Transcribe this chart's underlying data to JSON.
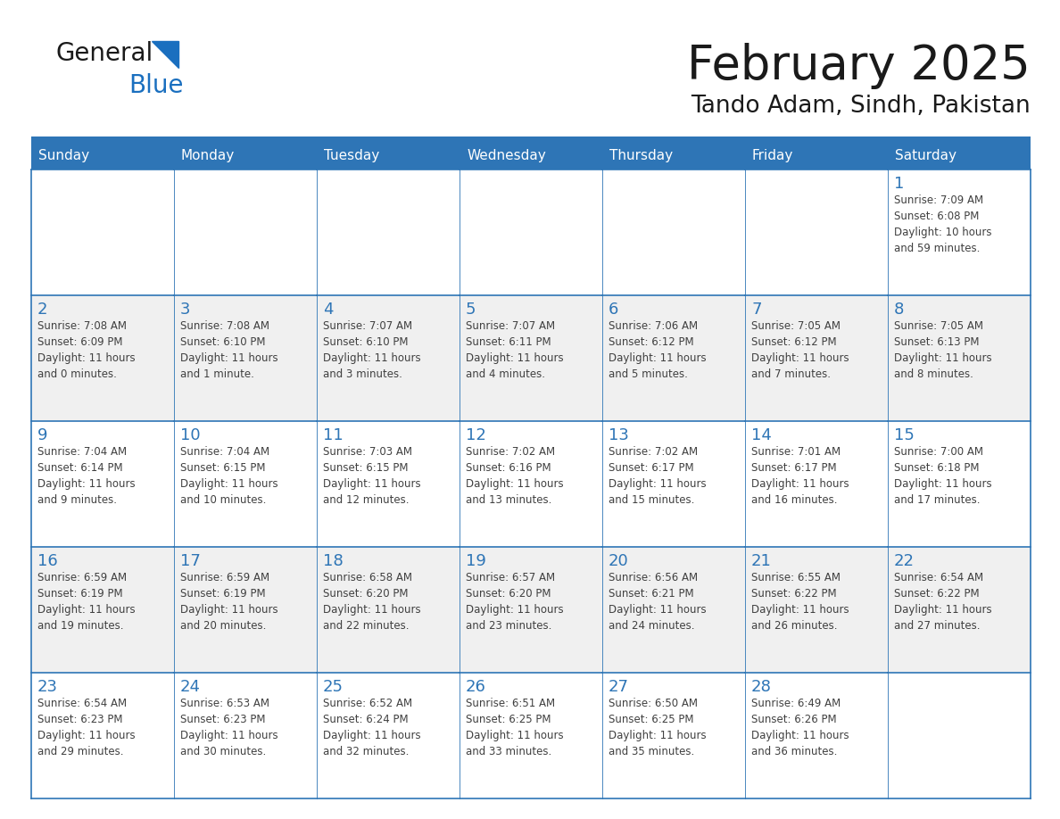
{
  "title": "February 2025",
  "subtitle": "Tando Adam, Sindh, Pakistan",
  "header_bg": "#2E75B6",
  "header_text_color": "#FFFFFF",
  "cell_bg_white": "#FFFFFF",
  "cell_bg_gray": "#F0F0F0",
  "day_number_color": "#2E75B6",
  "text_color": "#404040",
  "border_color": "#2E75B6",
  "days_of_week": [
    "Sunday",
    "Monday",
    "Tuesday",
    "Wednesday",
    "Thursday",
    "Friday",
    "Saturday"
  ],
  "weeks": [
    [
      {
        "day": null,
        "info": null
      },
      {
        "day": null,
        "info": null
      },
      {
        "day": null,
        "info": null
      },
      {
        "day": null,
        "info": null
      },
      {
        "day": null,
        "info": null
      },
      {
        "day": null,
        "info": null
      },
      {
        "day": 1,
        "info": "Sunrise: 7:09 AM\nSunset: 6:08 PM\nDaylight: 10 hours\nand 59 minutes."
      }
    ],
    [
      {
        "day": 2,
        "info": "Sunrise: 7:08 AM\nSunset: 6:09 PM\nDaylight: 11 hours\nand 0 minutes."
      },
      {
        "day": 3,
        "info": "Sunrise: 7:08 AM\nSunset: 6:10 PM\nDaylight: 11 hours\nand 1 minute."
      },
      {
        "day": 4,
        "info": "Sunrise: 7:07 AM\nSunset: 6:10 PM\nDaylight: 11 hours\nand 3 minutes."
      },
      {
        "day": 5,
        "info": "Sunrise: 7:07 AM\nSunset: 6:11 PM\nDaylight: 11 hours\nand 4 minutes."
      },
      {
        "day": 6,
        "info": "Sunrise: 7:06 AM\nSunset: 6:12 PM\nDaylight: 11 hours\nand 5 minutes."
      },
      {
        "day": 7,
        "info": "Sunrise: 7:05 AM\nSunset: 6:12 PM\nDaylight: 11 hours\nand 7 minutes."
      },
      {
        "day": 8,
        "info": "Sunrise: 7:05 AM\nSunset: 6:13 PM\nDaylight: 11 hours\nand 8 minutes."
      }
    ],
    [
      {
        "day": 9,
        "info": "Sunrise: 7:04 AM\nSunset: 6:14 PM\nDaylight: 11 hours\nand 9 minutes."
      },
      {
        "day": 10,
        "info": "Sunrise: 7:04 AM\nSunset: 6:15 PM\nDaylight: 11 hours\nand 10 minutes."
      },
      {
        "day": 11,
        "info": "Sunrise: 7:03 AM\nSunset: 6:15 PM\nDaylight: 11 hours\nand 12 minutes."
      },
      {
        "day": 12,
        "info": "Sunrise: 7:02 AM\nSunset: 6:16 PM\nDaylight: 11 hours\nand 13 minutes."
      },
      {
        "day": 13,
        "info": "Sunrise: 7:02 AM\nSunset: 6:17 PM\nDaylight: 11 hours\nand 15 minutes."
      },
      {
        "day": 14,
        "info": "Sunrise: 7:01 AM\nSunset: 6:17 PM\nDaylight: 11 hours\nand 16 minutes."
      },
      {
        "day": 15,
        "info": "Sunrise: 7:00 AM\nSunset: 6:18 PM\nDaylight: 11 hours\nand 17 minutes."
      }
    ],
    [
      {
        "day": 16,
        "info": "Sunrise: 6:59 AM\nSunset: 6:19 PM\nDaylight: 11 hours\nand 19 minutes."
      },
      {
        "day": 17,
        "info": "Sunrise: 6:59 AM\nSunset: 6:19 PM\nDaylight: 11 hours\nand 20 minutes."
      },
      {
        "day": 18,
        "info": "Sunrise: 6:58 AM\nSunset: 6:20 PM\nDaylight: 11 hours\nand 22 minutes."
      },
      {
        "day": 19,
        "info": "Sunrise: 6:57 AM\nSunset: 6:20 PM\nDaylight: 11 hours\nand 23 minutes."
      },
      {
        "day": 20,
        "info": "Sunrise: 6:56 AM\nSunset: 6:21 PM\nDaylight: 11 hours\nand 24 minutes."
      },
      {
        "day": 21,
        "info": "Sunrise: 6:55 AM\nSunset: 6:22 PM\nDaylight: 11 hours\nand 26 minutes."
      },
      {
        "day": 22,
        "info": "Sunrise: 6:54 AM\nSunset: 6:22 PM\nDaylight: 11 hours\nand 27 minutes."
      }
    ],
    [
      {
        "day": 23,
        "info": "Sunrise: 6:54 AM\nSunset: 6:23 PM\nDaylight: 11 hours\nand 29 minutes."
      },
      {
        "day": 24,
        "info": "Sunrise: 6:53 AM\nSunset: 6:23 PM\nDaylight: 11 hours\nand 30 minutes."
      },
      {
        "day": 25,
        "info": "Sunrise: 6:52 AM\nSunset: 6:24 PM\nDaylight: 11 hours\nand 32 minutes."
      },
      {
        "day": 26,
        "info": "Sunrise: 6:51 AM\nSunset: 6:25 PM\nDaylight: 11 hours\nand 33 minutes."
      },
      {
        "day": 27,
        "info": "Sunrise: 6:50 AM\nSunset: 6:25 PM\nDaylight: 11 hours\nand 35 minutes."
      },
      {
        "day": 28,
        "info": "Sunrise: 6:49 AM\nSunset: 6:26 PM\nDaylight: 11 hours\nand 36 minutes."
      },
      {
        "day": null,
        "info": null
      }
    ]
  ],
  "logo_text1": "General",
  "logo_text2": "Blue",
  "logo_color1": "#1A1A1A",
  "logo_color2": "#1A6FBF",
  "logo_triangle_color": "#1A6FBF",
  "week_bg_colors": [
    "#FFFFFF",
    "#F0F0F0",
    "#FFFFFF",
    "#F0F0F0",
    "#FFFFFF"
  ]
}
